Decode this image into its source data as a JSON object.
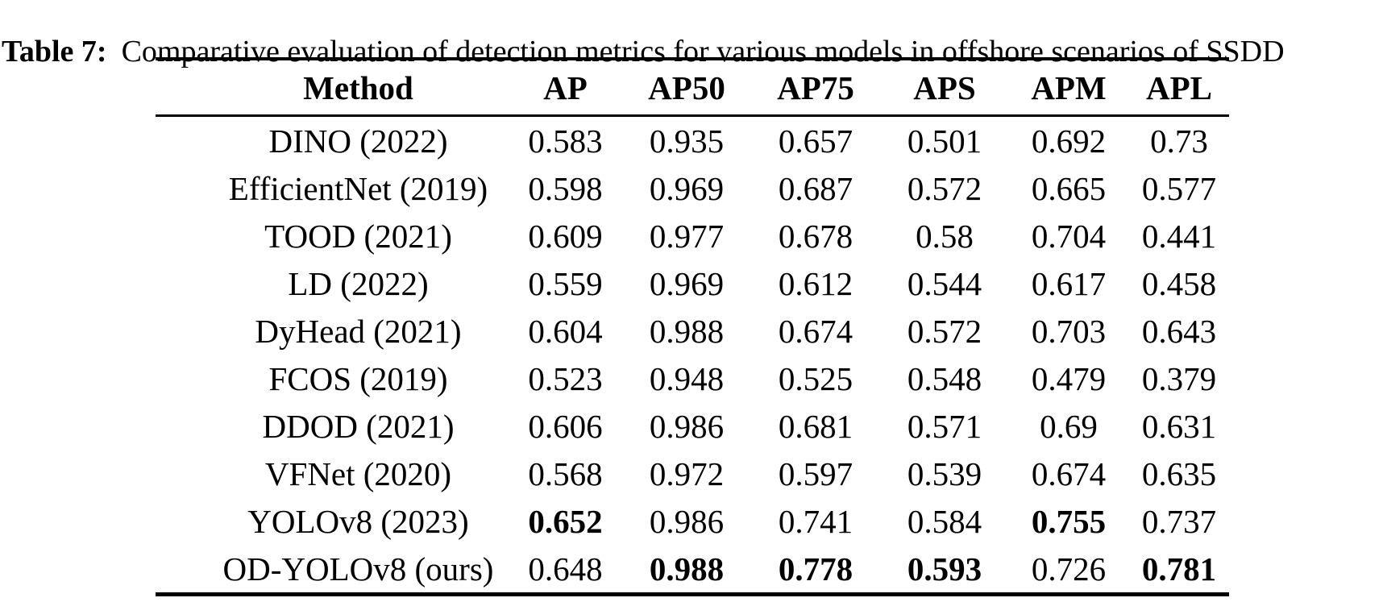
{
  "caption": {
    "label": "Table 7:",
    "text": "Comparative evaluation of detection metrics for various models in offshore scenarios of SSDD"
  },
  "table": {
    "columns": [
      "Method",
      "AP",
      "AP50",
      "AP75",
      "APS",
      "APM",
      "APL"
    ],
    "rows": [
      {
        "method": "DINO (2022)",
        "values": [
          "0.583",
          "0.935",
          "0.657",
          "0.501",
          "0.692",
          "0.73"
        ],
        "bold": [
          false,
          false,
          false,
          false,
          false,
          false
        ]
      },
      {
        "method": "EfficientNet (2019)",
        "values": [
          "0.598",
          "0.969",
          "0.687",
          "0.572",
          "0.665",
          "0.577"
        ],
        "bold": [
          false,
          false,
          false,
          false,
          false,
          false
        ]
      },
      {
        "method": "TOOD (2021)",
        "values": [
          "0.609",
          "0.977",
          "0.678",
          "0.58",
          "0.704",
          "0.441"
        ],
        "bold": [
          false,
          false,
          false,
          false,
          false,
          false
        ]
      },
      {
        "method": "LD (2022)",
        "values": [
          "0.559",
          "0.969",
          "0.612",
          "0.544",
          "0.617",
          "0.458"
        ],
        "bold": [
          false,
          false,
          false,
          false,
          false,
          false
        ]
      },
      {
        "method": "DyHead (2021)",
        "values": [
          "0.604",
          "0.988",
          "0.674",
          "0.572",
          "0.703",
          "0.643"
        ],
        "bold": [
          false,
          false,
          false,
          false,
          false,
          false
        ]
      },
      {
        "method": "FCOS (2019)",
        "values": [
          "0.523",
          "0.948",
          "0.525",
          "0.548",
          "0.479",
          "0.379"
        ],
        "bold": [
          false,
          false,
          false,
          false,
          false,
          false
        ]
      },
      {
        "method": "DDOD (2021)",
        "values": [
          "0.606",
          "0.986",
          "0.681",
          "0.571",
          "0.69",
          "0.631"
        ],
        "bold": [
          false,
          false,
          false,
          false,
          false,
          false
        ]
      },
      {
        "method": "VFNet (2020)",
        "values": [
          "0.568",
          "0.972",
          "0.597",
          "0.539",
          "0.674",
          "0.635"
        ],
        "bold": [
          false,
          false,
          false,
          false,
          false,
          false
        ]
      },
      {
        "method": "YOLOv8 (2023)",
        "values": [
          "0.652",
          "0.986",
          "0.741",
          "0.584",
          "0.755",
          "0.737"
        ],
        "bold": [
          true,
          false,
          false,
          false,
          true,
          false
        ]
      },
      {
        "method": "OD-YOLOv8 (ours)",
        "values": [
          "0.648",
          "0.988",
          "0.778",
          "0.593",
          "0.726",
          "0.781"
        ],
        "bold": [
          false,
          true,
          true,
          true,
          false,
          true
        ]
      }
    ]
  }
}
